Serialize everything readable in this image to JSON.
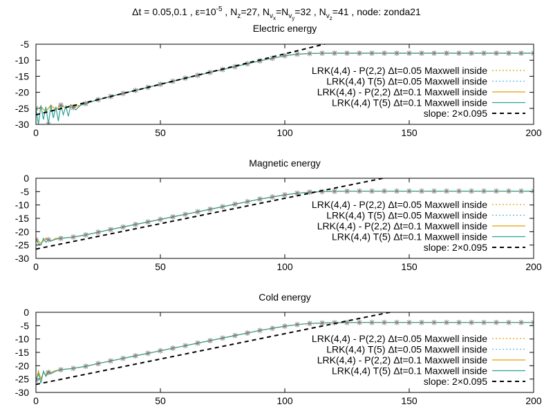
{
  "figure": {
    "suptitle": {
      "prefix": "Δt = 0.05,0.1 , ε=10",
      "eps_exp": "-5",
      "sep1": " , N",
      "nz_sub": "z",
      "nz_val": "=27, N",
      "v": "v",
      "x": "x",
      "eq": "=N",
      "y": "y",
      "nvy_val": "=32 , N",
      "z": "z",
      "tail": "=41 , node: zonda21"
    }
  },
  "chart_data": [
    {
      "type": "line",
      "title": "Electric energy",
      "xlim": [
        0,
        200
      ],
      "ylim": [
        -30,
        -5
      ],
      "xticks": [
        0,
        50,
        100,
        150,
        200
      ],
      "xtick_labels": [
        "0",
        "50",
        "100",
        "150",
        "200"
      ],
      "yticks": [
        -30,
        -25,
        -20,
        -15,
        -10,
        -5
      ],
      "ytick_labels": [
        "-30",
        "-25",
        "-20",
        "-15",
        "-10",
        "-5"
      ],
      "legend_position": "right",
      "series": [
        {
          "name": "LRK(4,4) - P(2,2) Δt=0.05 Maxwell inside",
          "color": "#e69f00",
          "style": "dotted",
          "x": [
            0,
            2,
            4,
            6,
            8,
            10,
            12,
            14,
            16,
            20,
            25,
            30,
            40,
            50,
            60,
            70,
            80,
            90,
            100,
            105,
            110,
            115,
            120,
            130,
            150,
            175,
            200
          ],
          "y": [
            -25.5,
            -24.5,
            -26.0,
            -24.0,
            -25.5,
            -23.8,
            -25.0,
            -23.9,
            -24.5,
            -23.5,
            -22.3,
            -21.3,
            -19.4,
            -17.5,
            -15.6,
            -13.8,
            -12.0,
            -10.2,
            -8.6,
            -8.1,
            -7.9,
            -7.8,
            -7.8,
            -7.8,
            -7.8,
            -7.8,
            -7.8
          ]
        },
        {
          "name": "LRK(4,4) T(5) Δt=0.05 Maxwell inside",
          "color": "#56b4e9",
          "style": "dotted",
          "x": [
            0,
            2,
            4,
            6,
            8,
            10,
            12,
            14,
            16,
            20,
            25,
            30,
            40,
            50,
            60,
            70,
            80,
            90,
            100,
            105,
            110,
            115,
            120,
            130,
            150,
            175,
            200
          ],
          "y": [
            -25.5,
            -24.5,
            -26.0,
            -24.0,
            -25.5,
            -23.8,
            -25.0,
            -23.9,
            -24.5,
            -23.5,
            -22.3,
            -21.3,
            -19.4,
            -17.5,
            -15.6,
            -13.8,
            -12.0,
            -10.2,
            -8.6,
            -8.1,
            -7.9,
            -7.8,
            -7.8,
            -7.8,
            -7.8,
            -7.8,
            -7.8
          ]
        },
        {
          "name": "LRK(4,4) - P(2,2) Δt=0.1 Maxwell inside",
          "color": "#e69f00",
          "style": "solid",
          "x": [
            0,
            2,
            4,
            6,
            8,
            10,
            12,
            14,
            16,
            20,
            25,
            30,
            40,
            50,
            60,
            70,
            80,
            90,
            100,
            105,
            110,
            115,
            120,
            130,
            150,
            175,
            200
          ],
          "y": [
            -25.5,
            -24.5,
            -26.0,
            -24.0,
            -25.5,
            -23.8,
            -25.0,
            -23.9,
            -24.5,
            -23.5,
            -22.3,
            -21.3,
            -19.4,
            -17.5,
            -15.6,
            -13.8,
            -12.0,
            -10.2,
            -8.6,
            -8.1,
            -7.9,
            -7.8,
            -7.8,
            -7.8,
            -7.8,
            -7.8,
            -7.8
          ]
        },
        {
          "name": "LRK(4,4) T(5) Δt=0.1 Maxwell inside",
          "color": "#2aa198",
          "style": "solid-marker",
          "x": [
            0,
            1,
            2,
            3,
            4,
            5,
            6,
            7,
            8,
            9,
            10,
            11,
            12,
            13,
            14,
            16,
            18,
            20,
            25,
            30,
            40,
            50,
            60,
            70,
            80,
            90,
            100,
            105,
            110,
            115,
            120,
            130,
            150,
            175,
            200
          ],
          "y": [
            -25.0,
            -30.0,
            -24.0,
            -28.5,
            -24.5,
            -30.0,
            -24.0,
            -28.0,
            -24.5,
            -29.0,
            -24.0,
            -27.0,
            -24.3,
            -27.5,
            -24.0,
            -25.5,
            -24.0,
            -23.5,
            -22.3,
            -21.3,
            -19.4,
            -17.5,
            -15.6,
            -13.8,
            -12.0,
            -10.2,
            -8.6,
            -8.1,
            -7.9,
            -7.8,
            -7.8,
            -7.8,
            -7.8,
            -7.8,
            -7.8
          ]
        },
        {
          "name": "slope: 2×0.095",
          "color": "#000000",
          "style": "dashed",
          "x": [
            0,
            200
          ],
          "y": [
            -27,
            11
          ]
        }
      ]
    },
    {
      "type": "line",
      "title": "Magnetic energy",
      "xlim": [
        0,
        200
      ],
      "ylim": [
        -30,
        0
      ],
      "xticks": [
        0,
        50,
        100,
        150,
        200
      ],
      "xtick_labels": [
        "0",
        "50",
        "100",
        "150",
        "200"
      ],
      "yticks": [
        -30,
        -25,
        -20,
        -15,
        -10,
        -5,
        0
      ],
      "ytick_labels": [
        "-30",
        "-25",
        "-20",
        "-15",
        "-10",
        "-5",
        "0"
      ],
      "legend_position": "right",
      "series": [
        {
          "name": "LRK(4,4) - P(2,2) Δt=0.05 Maxwell inside",
          "color": "#e69f00",
          "style": "dotted",
          "x": [
            0,
            2,
            4,
            6,
            8,
            10,
            15,
            20,
            25,
            30,
            40,
            50,
            60,
            70,
            80,
            90,
            100,
            105,
            110,
            115,
            120,
            130,
            150,
            175,
            200
          ],
          "y": [
            -22.5,
            -24.5,
            -22.5,
            -23.5,
            -22.5,
            -22.5,
            -22.0,
            -21.2,
            -20.2,
            -19.2,
            -17.3,
            -15.4,
            -13.5,
            -11.6,
            -9.7,
            -7.8,
            -6.2,
            -5.6,
            -5.2,
            -5.0,
            -4.9,
            -4.8,
            -4.8,
            -4.8,
            -4.8
          ]
        },
        {
          "name": "LRK(4,4) T(5) Δt=0.05 Maxwell inside",
          "color": "#56b4e9",
          "style": "dotted",
          "x": [
            0,
            2,
            4,
            6,
            8,
            10,
            15,
            20,
            25,
            30,
            40,
            50,
            60,
            70,
            80,
            90,
            100,
            105,
            110,
            115,
            120,
            130,
            150,
            175,
            200
          ],
          "y": [
            -22.5,
            -24.5,
            -22.5,
            -23.5,
            -22.5,
            -22.5,
            -22.0,
            -21.2,
            -20.2,
            -19.2,
            -17.3,
            -15.4,
            -13.5,
            -11.6,
            -9.7,
            -7.8,
            -6.2,
            -5.6,
            -5.2,
            -5.0,
            -4.9,
            -4.8,
            -4.8,
            -4.8,
            -4.8
          ]
        },
        {
          "name": "LRK(4,4) - P(2,2) Δt=0.1 Maxwell inside",
          "color": "#e69f00",
          "style": "solid",
          "x": [
            0,
            2,
            4,
            6,
            8,
            10,
            15,
            20,
            25,
            30,
            40,
            50,
            60,
            70,
            80,
            90,
            100,
            105,
            110,
            115,
            120,
            130,
            150,
            175,
            200
          ],
          "y": [
            -22.5,
            -24.5,
            -22.5,
            -23.5,
            -22.5,
            -22.5,
            -22.0,
            -21.2,
            -20.2,
            -19.2,
            -17.3,
            -15.4,
            -13.5,
            -11.6,
            -9.7,
            -7.8,
            -6.2,
            -5.6,
            -5.2,
            -5.0,
            -4.9,
            -4.8,
            -4.8,
            -4.8,
            -4.8
          ]
        },
        {
          "name": "LRK(4,4) T(5) Δt=0.1 Maxwell inside",
          "color": "#2aa198",
          "style": "solid-marker",
          "x": [
            0,
            1,
            2,
            3,
            4,
            5,
            6,
            8,
            10,
            15,
            20,
            25,
            30,
            40,
            50,
            60,
            70,
            80,
            90,
            100,
            105,
            110,
            115,
            120,
            130,
            150,
            175,
            200
          ],
          "y": [
            -23.0,
            -24.5,
            -25.0,
            -22.5,
            -24.0,
            -23.0,
            -23.5,
            -22.8,
            -22.5,
            -22.0,
            -21.2,
            -20.2,
            -19.2,
            -17.3,
            -15.4,
            -13.5,
            -11.6,
            -9.7,
            -7.8,
            -6.2,
            -5.6,
            -5.2,
            -5.0,
            -4.9,
            -4.8,
            -4.8,
            -4.8,
            -4.8
          ]
        },
        {
          "name": "slope: 2×0.095",
          "color": "#000000",
          "style": "dashed",
          "x": [
            0,
            200
          ],
          "y": [
            -26.5,
            11.5
          ]
        }
      ]
    },
    {
      "type": "line",
      "title": "Cold energy",
      "xlim": [
        0,
        200
      ],
      "ylim": [
        -30,
        0
      ],
      "xticks": [
        0,
        50,
        100,
        150,
        200
      ],
      "xtick_labels": [
        "0",
        "50",
        "100",
        "150",
        "200"
      ],
      "yticks": [
        -30,
        -25,
        -20,
        -15,
        -10,
        -5,
        0
      ],
      "ytick_labels": [
        "-30",
        "-25",
        "-20",
        "-15",
        "-10",
        "-5",
        "0"
      ],
      "legend_position": "right",
      "series": [
        {
          "name": "LRK(4,4) - P(2,2) Δt=0.05 Maxwell inside",
          "color": "#e69f00",
          "style": "dotted",
          "x": [
            0,
            1,
            2,
            3,
            4,
            5,
            6,
            8,
            10,
            15,
            20,
            25,
            30,
            40,
            50,
            60,
            70,
            80,
            90,
            100,
            105,
            110,
            115,
            120,
            130,
            150,
            175,
            200
          ],
          "y": [
            -26.0,
            -22.0,
            -25.0,
            -22.5,
            -23.5,
            -22.0,
            -22.5,
            -21.8,
            -21.5,
            -21.0,
            -20.2,
            -19.2,
            -18.2,
            -16.3,
            -14.4,
            -12.5,
            -10.6,
            -8.7,
            -6.8,
            -5.2,
            -4.6,
            -4.2,
            -4.0,
            -3.9,
            -3.8,
            -3.8,
            -3.8,
            -3.8
          ]
        },
        {
          "name": "LRK(4,4) T(5) Δt=0.05 Maxwell inside",
          "color": "#56b4e9",
          "style": "dotted",
          "x": [
            0,
            1,
            2,
            3,
            4,
            5,
            6,
            8,
            10,
            15,
            20,
            25,
            30,
            40,
            50,
            60,
            70,
            80,
            90,
            100,
            105,
            110,
            115,
            120,
            130,
            150,
            175,
            200
          ],
          "y": [
            -26.0,
            -22.0,
            -25.0,
            -22.5,
            -23.5,
            -22.0,
            -22.5,
            -21.8,
            -21.5,
            -21.0,
            -20.2,
            -19.2,
            -18.2,
            -16.3,
            -14.4,
            -12.5,
            -10.6,
            -8.7,
            -6.8,
            -5.2,
            -4.6,
            -4.2,
            -4.0,
            -3.9,
            -3.8,
            -3.8,
            -3.8,
            -3.8
          ]
        },
        {
          "name": "LRK(4,4) - P(2,2) Δt=0.1 Maxwell inside",
          "color": "#e69f00",
          "style": "solid",
          "x": [
            0,
            1,
            2,
            3,
            4,
            5,
            6,
            8,
            10,
            15,
            20,
            25,
            30,
            40,
            50,
            60,
            70,
            80,
            90,
            100,
            105,
            110,
            115,
            120,
            130,
            150,
            175,
            200
          ],
          "y": [
            -26.0,
            -22.0,
            -25.0,
            -22.5,
            -23.5,
            -22.0,
            -22.5,
            -21.8,
            -21.5,
            -21.0,
            -20.2,
            -19.2,
            -18.2,
            -16.3,
            -14.4,
            -12.5,
            -10.6,
            -8.7,
            -6.8,
            -5.2,
            -4.6,
            -4.2,
            -4.0,
            -3.9,
            -3.8,
            -3.8,
            -3.8,
            -3.8
          ]
        },
        {
          "name": "LRK(4,4) T(5) Δt=0.1 Maxwell inside",
          "color": "#2aa198",
          "style": "solid-marker",
          "x": [
            0,
            1,
            2,
            3,
            4,
            5,
            6,
            8,
            10,
            15,
            20,
            25,
            30,
            40,
            50,
            60,
            70,
            80,
            90,
            100,
            105,
            110,
            115,
            120,
            130,
            150,
            175,
            200
          ],
          "y": [
            -25.5,
            -23.0,
            -26.5,
            -22.0,
            -24.0,
            -22.5,
            -23.0,
            -22.0,
            -21.5,
            -21.0,
            -20.2,
            -19.2,
            -18.2,
            -16.3,
            -14.4,
            -12.5,
            -10.6,
            -8.7,
            -6.8,
            -5.2,
            -4.6,
            -4.2,
            -4.0,
            -3.9,
            -3.8,
            -3.8,
            -3.8,
            -3.8
          ]
        },
        {
          "name": "slope: 2×0.095",
          "color": "#000000",
          "style": "dashed",
          "x": [
            0,
            200
          ],
          "y": [
            -27,
            11
          ]
        }
      ]
    }
  ]
}
